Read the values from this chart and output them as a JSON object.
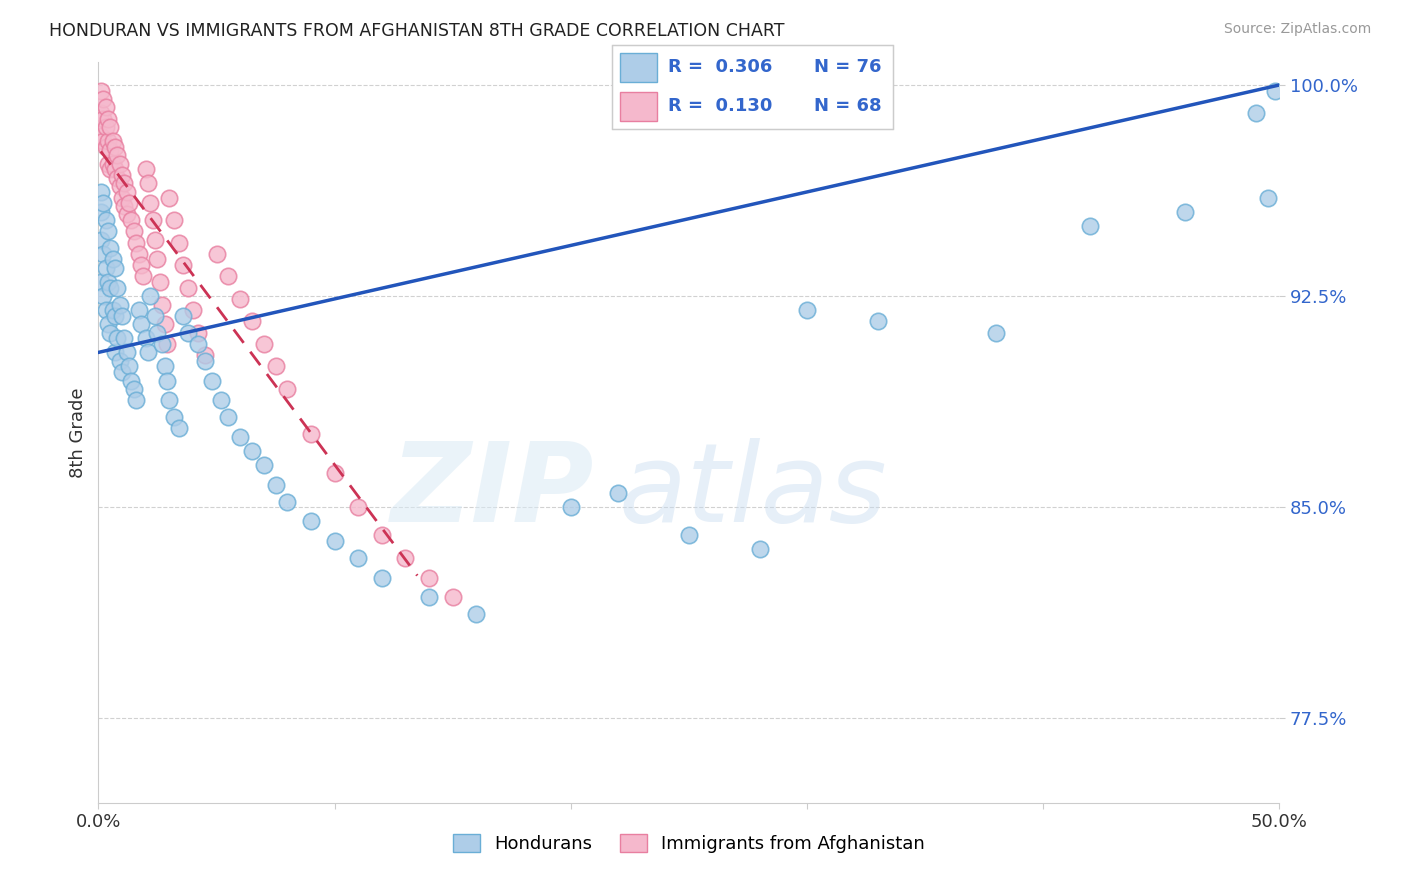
{
  "title": "HONDURAN VS IMMIGRANTS FROM AFGHANISTAN 8TH GRADE CORRELATION CHART",
  "source": "Source: ZipAtlas.com",
  "ylabel": "8th Grade",
  "xlim": [
    0.0,
    0.5
  ],
  "ylim": [
    0.745,
    1.008
  ],
  "xticks": [
    0.0,
    0.1,
    0.2,
    0.3,
    0.4,
    0.5
  ],
  "xticklabels": [
    "0.0%",
    "",
    "",
    "",
    "",
    "50.0%"
  ],
  "yticks": [
    0.775,
    0.85,
    0.925,
    1.0
  ],
  "yticklabels": [
    "77.5%",
    "85.0%",
    "92.5%",
    "100.0%"
  ],
  "blue_color": "#aecde8",
  "blue_edge": "#6aaed6",
  "pink_color": "#f5b8cc",
  "pink_edge": "#e87fa0",
  "blue_line_color": "#2255bb",
  "pink_line_color": "#cc3355",
  "legend_label1": "Hondurans",
  "legend_label2": "Immigrants from Afghanistan",
  "blue_x": [
    0.001,
    0.001,
    0.001,
    0.001,
    0.002,
    0.002,
    0.002,
    0.003,
    0.003,
    0.003,
    0.004,
    0.004,
    0.004,
    0.005,
    0.005,
    0.005,
    0.006,
    0.006,
    0.007,
    0.007,
    0.007,
    0.008,
    0.008,
    0.009,
    0.009,
    0.01,
    0.01,
    0.011,
    0.012,
    0.013,
    0.014,
    0.015,
    0.016,
    0.017,
    0.018,
    0.02,
    0.021,
    0.022,
    0.024,
    0.025,
    0.027,
    0.028,
    0.029,
    0.03,
    0.032,
    0.034,
    0.036,
    0.038,
    0.042,
    0.045,
    0.048,
    0.052,
    0.055,
    0.06,
    0.065,
    0.07,
    0.075,
    0.08,
    0.09,
    0.1,
    0.11,
    0.12,
    0.14,
    0.16,
    0.2,
    0.22,
    0.25,
    0.28,
    0.3,
    0.33,
    0.38,
    0.42,
    0.46,
    0.49,
    0.495,
    0.498
  ],
  "blue_y": [
    0.955,
    0.962,
    0.93,
    0.945,
    0.958,
    0.94,
    0.925,
    0.952,
    0.935,
    0.92,
    0.948,
    0.93,
    0.915,
    0.942,
    0.928,
    0.912,
    0.938,
    0.92,
    0.935,
    0.918,
    0.905,
    0.928,
    0.91,
    0.922,
    0.902,
    0.918,
    0.898,
    0.91,
    0.905,
    0.9,
    0.895,
    0.892,
    0.888,
    0.92,
    0.915,
    0.91,
    0.905,
    0.925,
    0.918,
    0.912,
    0.908,
    0.9,
    0.895,
    0.888,
    0.882,
    0.878,
    0.918,
    0.912,
    0.908,
    0.902,
    0.895,
    0.888,
    0.882,
    0.875,
    0.87,
    0.865,
    0.858,
    0.852,
    0.845,
    0.838,
    0.832,
    0.825,
    0.818,
    0.812,
    0.85,
    0.855,
    0.84,
    0.835,
    0.92,
    0.916,
    0.912,
    0.95,
    0.955,
    0.99,
    0.96,
    0.998
  ],
  "pink_x": [
    0.001,
    0.001,
    0.001,
    0.002,
    0.002,
    0.002,
    0.003,
    0.003,
    0.003,
    0.004,
    0.004,
    0.004,
    0.005,
    0.005,
    0.005,
    0.006,
    0.006,
    0.007,
    0.007,
    0.008,
    0.008,
    0.009,
    0.009,
    0.01,
    0.01,
    0.011,
    0.011,
    0.012,
    0.012,
    0.013,
    0.014,
    0.015,
    0.016,
    0.017,
    0.018,
    0.019,
    0.02,
    0.021,
    0.022,
    0.023,
    0.024,
    0.025,
    0.026,
    0.027,
    0.028,
    0.029,
    0.03,
    0.032,
    0.034,
    0.036,
    0.038,
    0.04,
    0.042,
    0.045,
    0.05,
    0.055,
    0.06,
    0.065,
    0.07,
    0.075,
    0.08,
    0.09,
    0.1,
    0.11,
    0.12,
    0.13,
    0.14,
    0.15
  ],
  "pink_y": [
    0.998,
    0.99,
    0.982,
    0.995,
    0.988,
    0.98,
    0.992,
    0.985,
    0.978,
    0.988,
    0.98,
    0.972,
    0.985,
    0.977,
    0.97,
    0.98,
    0.972,
    0.978,
    0.97,
    0.975,
    0.967,
    0.972,
    0.964,
    0.968,
    0.96,
    0.965,
    0.957,
    0.962,
    0.954,
    0.958,
    0.952,
    0.948,
    0.944,
    0.94,
    0.936,
    0.932,
    0.97,
    0.965,
    0.958,
    0.952,
    0.945,
    0.938,
    0.93,
    0.922,
    0.915,
    0.908,
    0.96,
    0.952,
    0.944,
    0.936,
    0.928,
    0.92,
    0.912,
    0.904,
    0.94,
    0.932,
    0.924,
    0.916,
    0.908,
    0.9,
    0.892,
    0.876,
    0.862,
    0.85,
    0.84,
    0.832,
    0.825,
    0.818
  ]
}
